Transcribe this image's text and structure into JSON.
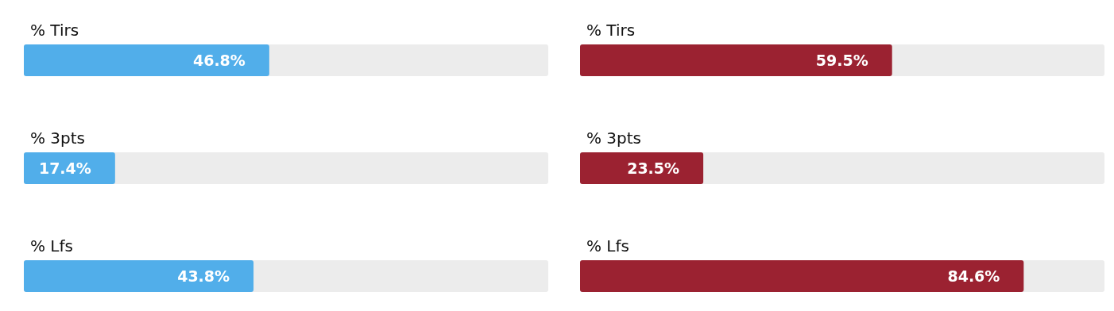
{
  "chart_data": [
    {
      "type": "bar",
      "orientation": "horizontal",
      "categories": [
        "% Tirs",
        "% 3pts",
        "% Lfs"
      ],
      "values": [
        46.8,
        17.4,
        43.8
      ],
      "value_labels": [
        "46.8%",
        "17.4%",
        "43.8%"
      ],
      "color": "#51aeea",
      "xlim": [
        0,
        100
      ],
      "tick_labels": "y"
    },
    {
      "type": "bar",
      "orientation": "horizontal",
      "categories": [
        "% Tirs",
        "% 3pts",
        "% Lfs"
      ],
      "values": [
        59.5,
        23.5,
        84.6
      ],
      "value_labels": [
        "59.5%",
        "23.5%",
        "84.6%"
      ],
      "color": "#9b2231",
      "xlim": [
        0,
        100
      ],
      "tick_labels": "y"
    }
  ]
}
